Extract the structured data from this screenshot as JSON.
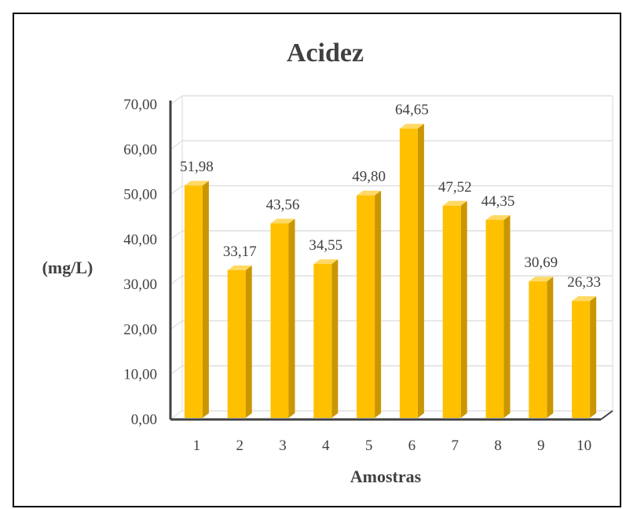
{
  "chart_data": {
    "type": "bar",
    "title": "Acidez",
    "xlabel": "Amostras",
    "ylabel": "(mg/L)",
    "categories": [
      "1",
      "2",
      "3",
      "4",
      "5",
      "6",
      "7",
      "8",
      "9",
      "10"
    ],
    "values": [
      51.98,
      33.17,
      43.56,
      34.55,
      49.8,
      64.65,
      47.52,
      44.35,
      30.69,
      26.33
    ],
    "value_labels": [
      "51,98",
      "33,17",
      "43,56",
      "34,55",
      "49,80",
      "64,65",
      "47,52",
      "44,35",
      "30,69",
      "26,33"
    ],
    "yticks": [
      "0,00",
      "10,00",
      "20,00",
      "30,00",
      "40,00",
      "50,00",
      "60,00",
      "70,00"
    ],
    "ylim": [
      0,
      70
    ],
    "grid": true,
    "legend": "none",
    "style": "3d-column",
    "colors": {
      "bar_front": "#FFC000",
      "bar_side": "#C99600",
      "bar_top": "#FFD966",
      "grid": "#D9D9D9",
      "text": "#404040"
    }
  }
}
